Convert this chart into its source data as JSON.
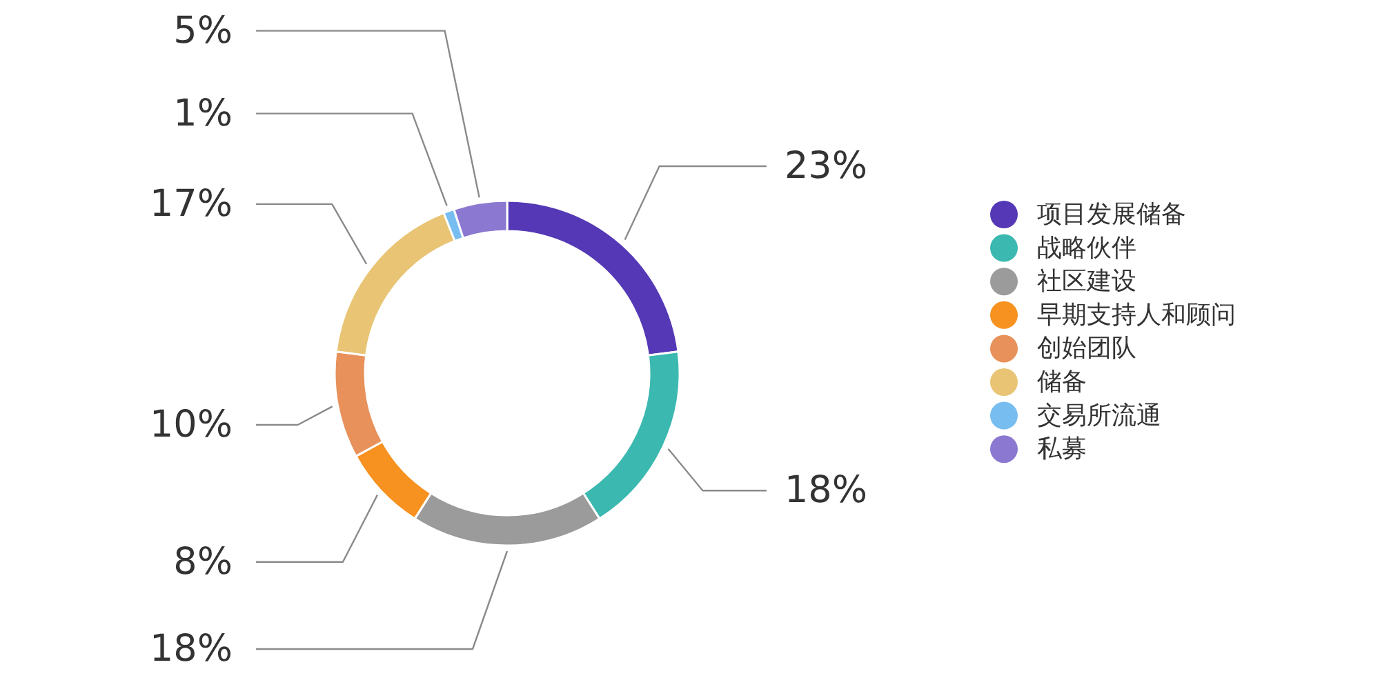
{
  "chart_data": {
    "type": "donut",
    "categories": [
      "项目发展储备",
      "战略伙伴",
      "社区建设",
      "早期支持人和顾问",
      "创始团队",
      "储备",
      "交易所流通",
      "私募"
    ],
    "values": [
      23,
      18,
      18,
      8,
      10,
      17,
      1,
      5
    ],
    "value_labels": [
      "23%",
      "18%",
      "18%",
      "8%",
      "10%",
      "17%",
      "1%",
      "5%"
    ],
    "colors": [
      "#5438b5",
      "#3bb8b0",
      "#9b9b9b",
      "#f7911f",
      "#e8915a",
      "#e8c474",
      "#78bdf0",
      "#8b78d0"
    ],
    "legend": "right"
  }
}
